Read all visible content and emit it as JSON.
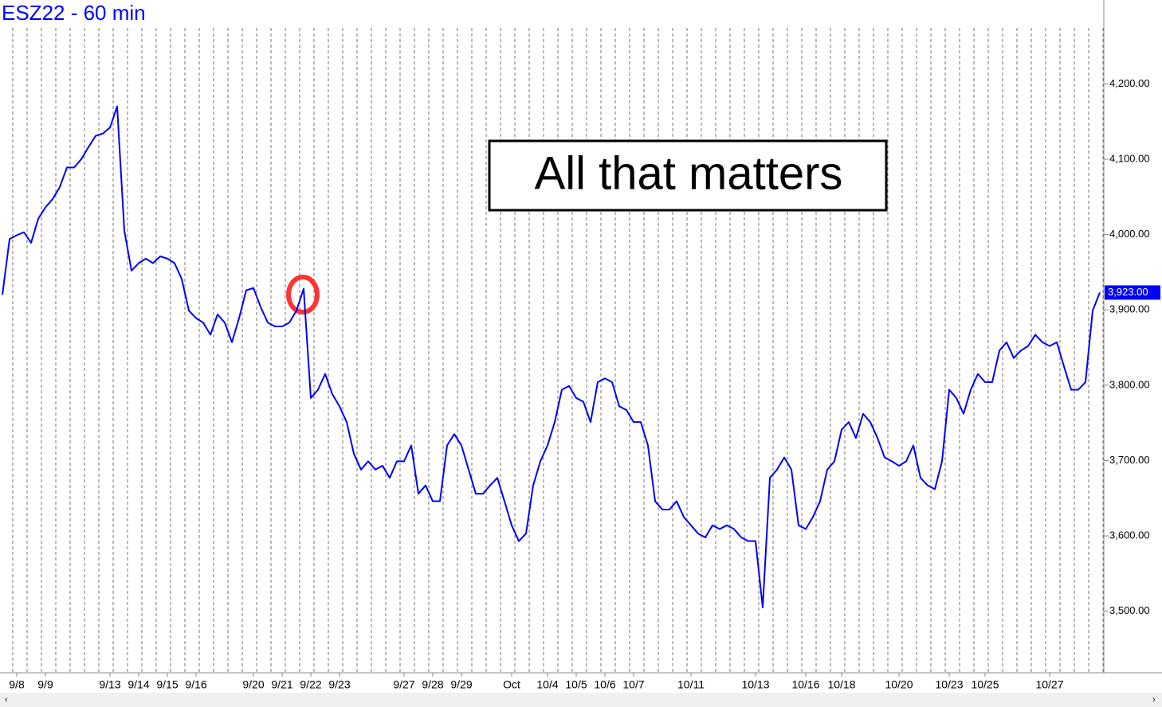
{
  "chart_data": {
    "type": "line",
    "title": "ESZ22 - 60 min",
    "annotation": "All that matters",
    "categories": [
      null,
      null,
      "9/8",
      null,
      null,
      null,
      "9/9",
      null,
      null,
      null,
      null,
      null,
      null,
      null,
      null,
      "9/13",
      null,
      null,
      null,
      "9/14",
      null,
      null,
      null,
      "9/15",
      null,
      null,
      null,
      "9/16",
      null,
      null,
      null,
      null,
      null,
      null,
      null,
      "9/20",
      null,
      null,
      null,
      "9/21",
      null,
      null,
      null,
      "9/22",
      null,
      null,
      null,
      "9/23",
      null,
      null,
      null,
      null,
      null,
      null,
      null,
      null,
      "9/27",
      null,
      null,
      null,
      "9/28",
      null,
      null,
      null,
      "9/29",
      null,
      null,
      null,
      null,
      null,
      null,
      "Oct",
      null,
      null,
      null,
      null,
      "10/4",
      null,
      null,
      null,
      "10/5",
      null,
      null,
      null,
      "10/6",
      null,
      null,
      null,
      "10/7",
      null,
      null,
      null,
      null,
      null,
      null,
      null,
      "10/11",
      null,
      null,
      null,
      null,
      null,
      null,
      null,
      null,
      "10/13",
      null,
      null,
      null,
      null,
      null,
      null,
      "10/16",
      null,
      null,
      null,
      null,
      "10/18",
      null,
      null,
      null,
      null,
      null,
      null,
      null,
      "10/20",
      null,
      null,
      null,
      null,
      null,
      null,
      "10/23",
      null,
      null,
      null,
      null,
      "10/25",
      null,
      null,
      null,
      null,
      null,
      null,
      null,
      null,
      "10/27",
      null,
      null,
      null,
      null,
      null,
      null,
      null
    ],
    "series": [
      {
        "name": "ESZ22",
        "color": "#0000ff",
        "values": [
          3920,
          3994,
          3999,
          4003,
          3989,
          4021,
          4036,
          4047,
          4063,
          4089,
          4089,
          4100,
          4116,
          4131,
          4134,
          4142,
          4170,
          4005,
          3952,
          3962,
          3968,
          3962,
          3971,
          3968,
          3962,
          3941,
          3899,
          3889,
          3883,
          3867,
          3894,
          3883,
          3857,
          3889,
          3926,
          3929,
          3904,
          3883,
          3878,
          3878,
          3883,
          3899,
          3928,
          3783,
          3794,
          3815,
          3788,
          3772,
          3751,
          3709,
          3688,
          3699,
          3688,
          3693,
          3677,
          3699,
          3699,
          3720,
          3656,
          3667,
          3646,
          3646,
          3720,
          3735,
          3720,
          3688,
          3656,
          3656,
          3667,
          3677,
          3646,
          3614,
          3593,
          3603,
          3667,
          3699,
          3720,
          3751,
          3794,
          3799,
          3783,
          3778,
          3751,
          3804,
          3809,
          3804,
          3772,
          3767,
          3751,
          3751,
          3720,
          3646,
          3635,
          3635,
          3646,
          3625,
          3614,
          3603,
          3598,
          3614,
          3609,
          3614,
          3609,
          3598,
          3593,
          3593,
          3505,
          3677,
          3688,
          3704,
          3688,
          3614,
          3609,
          3625,
          3646,
          3688,
          3699,
          3741,
          3751,
          3730,
          3762,
          3751,
          3730,
          3704,
          3699,
          3693,
          3699,
          3720,
          3677,
          3667,
          3662,
          3699,
          3794,
          3783,
          3762,
          3794,
          3815,
          3804,
          3804,
          3846,
          3857,
          3836,
          3846,
          3852,
          3867,
          3857,
          3852,
          3857,
          3825,
          3794,
          3794,
          3804,
          3899,
          3923
        ]
      }
    ],
    "last_price": {
      "value": 3923,
      "label": "3,923.00"
    },
    "ylim": [
      3450,
      4250
    ],
    "yticks": [
      {
        "value": 3500,
        "label": "3,500.00"
      },
      {
        "value": 3600,
        "label": "3,600.00"
      },
      {
        "value": 3700,
        "label": "3,700.00"
      },
      {
        "value": 3800,
        "label": "3,800.00"
      },
      {
        "value": 3900,
        "label": "3,900.00"
      },
      {
        "value": 4000,
        "label": "4,000.00"
      },
      {
        "value": 4100,
        "label": "4,100.00"
      },
      {
        "value": 4200,
        "label": "4,200.00"
      }
    ],
    "grid": true
  }
}
